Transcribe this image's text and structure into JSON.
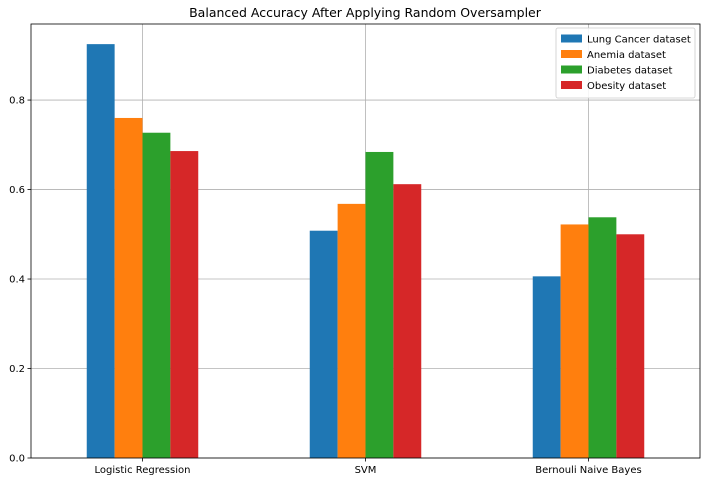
{
  "chart_data": {
    "type": "bar",
    "title": "Balanced Accuracy After Applying Random Oversampler",
    "xlabel": "",
    "ylabel": "",
    "categories": [
      "Logistic Regression",
      "SVM",
      "Bernouli Naive Bayes"
    ],
    "series": [
      {
        "name": "Lung Cancer dataset",
        "color": "#1f77b4",
        "values": [
          0.925,
          0.508,
          0.406
        ]
      },
      {
        "name": "Anemia dataset",
        "color": "#ff7f0e",
        "values": [
          0.76,
          0.568,
          0.522
        ]
      },
      {
        "name": "Diabetes dataset",
        "color": "#2ca02c",
        "values": [
          0.727,
          0.684,
          0.538
        ]
      },
      {
        "name": "Obesity dataset",
        "color": "#d62728",
        "values": [
          0.686,
          0.612,
          0.5
        ]
      }
    ],
    "ylim": [
      0,
      0.97
    ],
    "yticks": [
      0.0,
      0.2,
      0.4,
      0.6,
      0.8
    ],
    "ytick_labels": [
      "0.0",
      "0.2",
      "0.4",
      "0.6",
      "0.8"
    ],
    "grid": true,
    "legend_position": "top-right"
  }
}
